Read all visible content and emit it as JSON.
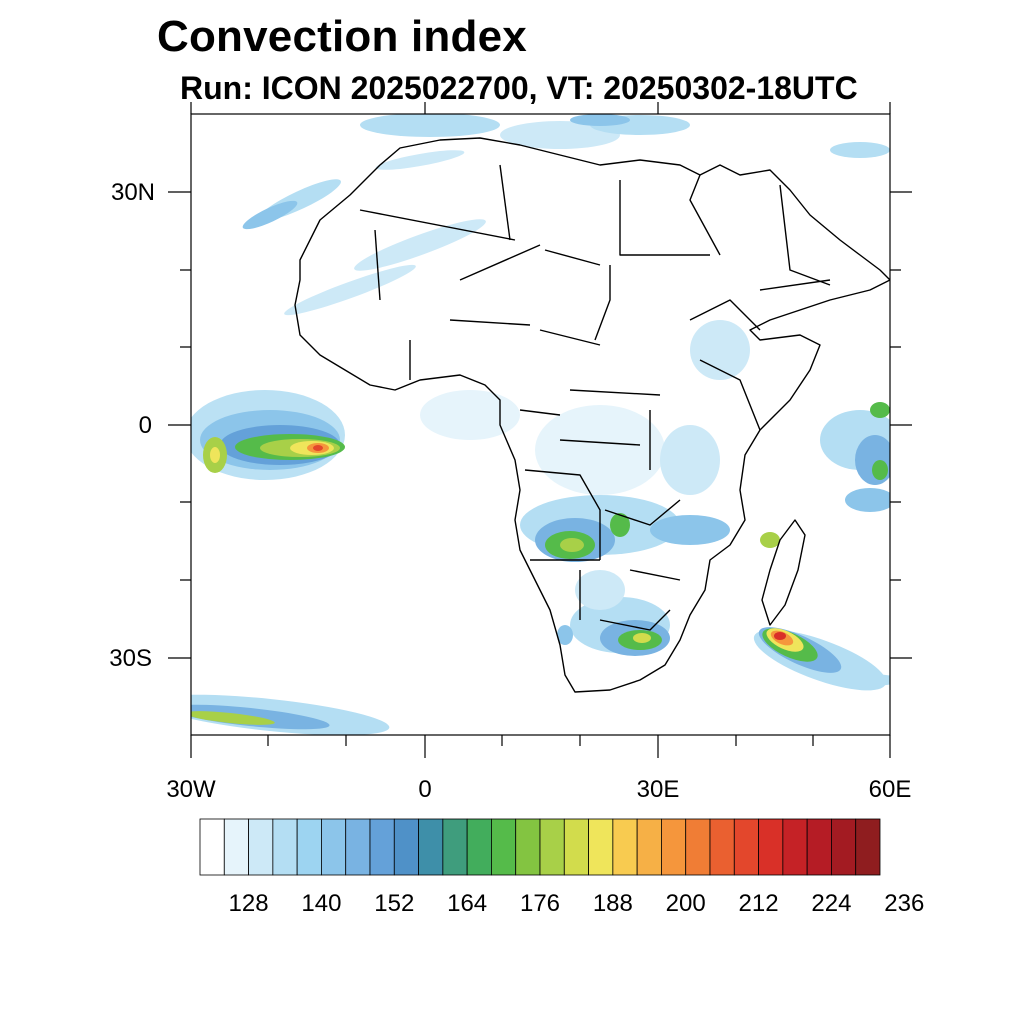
{
  "title": "Convection index",
  "subtitle": "Run: ICON 2025022700,  VT: 20250302-18UTC",
  "axes": {
    "lat_labels": [
      "30N",
      "0",
      "30S"
    ],
    "lon_labels": [
      "30W",
      "0",
      "30E",
      "60E"
    ]
  },
  "colorbar": {
    "colors": [
      "#ffffff",
      "#e6f4fb",
      "#cde9f7",
      "#b4def3",
      "#9dd4f1",
      "#8cc5ea",
      "#79b3e2",
      "#64a1d9",
      "#4f91c8",
      "#3e8fa9",
      "#3f9d7d",
      "#42ad5c",
      "#55bb4a",
      "#83c441",
      "#a8d048",
      "#d2dc4c",
      "#efe55b",
      "#f8cb50",
      "#f6b046",
      "#f5963c",
      "#f07d35",
      "#ea6030",
      "#e3472c",
      "#d93028",
      "#c52226",
      "#b51c25",
      "#a31b22",
      "#8f1d1f"
    ],
    "labels": [
      "128",
      "140",
      "152",
      "164",
      "176",
      "188",
      "200",
      "212",
      "224",
      "236"
    ]
  }
}
